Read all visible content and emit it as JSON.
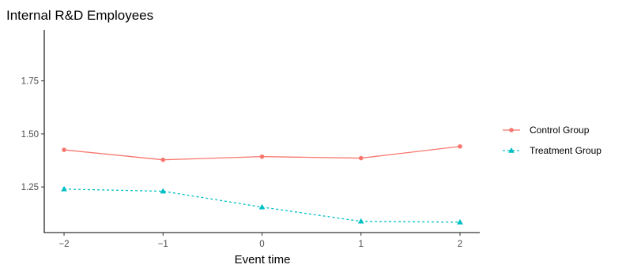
{
  "chart_data": {
    "type": "line",
    "title": "Internal R&D Employees",
    "xlabel": "Event time",
    "ylabel": "",
    "x": [
      -2,
      -1,
      0,
      1,
      2
    ],
    "x_tick_labels": [
      "−2",
      "−1",
      "0",
      "1",
      "2"
    ],
    "xlim": [
      -2.2,
      2.2
    ],
    "ylim": [
      1.035,
      1.99
    ],
    "y_ticks": [
      1.25,
      1.5,
      1.75
    ],
    "y_tick_labels": [
      "1.25",
      "1.50",
      "1.75"
    ],
    "grid": false,
    "legend_position": "right",
    "series": [
      {
        "name": "Control Group",
        "color": "#F8766D",
        "line_style": "solid",
        "marker": "circle",
        "values": [
          1.425,
          1.378,
          1.393,
          1.386,
          1.441
        ]
      },
      {
        "name": "Treatment Group",
        "color": "#00BFC4",
        "line_style": "dashed",
        "marker": "triangle",
        "values": [
          1.24,
          1.23,
          1.155,
          1.088,
          1.084
        ]
      }
    ]
  }
}
